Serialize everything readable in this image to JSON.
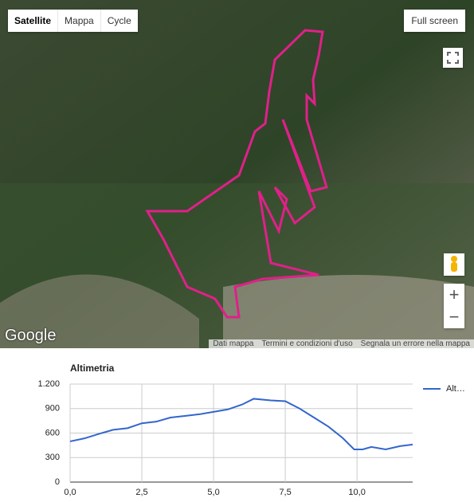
{
  "map": {
    "map_types": [
      "Satellite",
      "Mappa",
      "Cycle"
    ],
    "fullscreen": "Full screen",
    "logo": "Google",
    "zoom_in": "+",
    "zoom_out": "−",
    "footer": [
      "Dati mappa",
      "Termini e condizioni d'uso",
      "Segnala un errore nella mappa"
    ]
  },
  "chart_data": {
    "type": "line",
    "title": "Altimetria",
    "x": [
      0,
      0.5,
      1,
      1.5,
      2,
      2.5,
      3,
      3.5,
      4,
      4.5,
      5,
      5.5,
      6,
      6.4,
      7,
      7.5,
      8,
      8.5,
      9,
      9.5,
      9.9,
      10.2,
      10.5,
      11,
      11.5,
      11.94
    ],
    "series": [
      {
        "name": "Alt…",
        "color": "#3366cc",
        "values": [
          498,
          535,
          590,
          640,
          660,
          720,
          740,
          790,
          810,
          830,
          860,
          890,
          950,
          1020,
          1000,
          990,
          900,
          790,
          680,
          540,
          400,
          400,
          430,
          400,
          440,
          460
        ]
      }
    ],
    "xlim": [
      0,
      11.94
    ],
    "ylim": [
      0,
      1200
    ],
    "xticks": [
      {
        "value": 0,
        "label": "0,0"
      },
      {
        "value": 2.5,
        "label": "2,5"
      },
      {
        "value": 5,
        "label": "5,0"
      },
      {
        "value": 7.5,
        "label": "7,5"
      },
      {
        "value": 10,
        "label": "10,0"
      }
    ],
    "yticks": [
      0,
      300,
      600,
      900,
      {
        "value": 1200,
        "label": "1.200"
      }
    ],
    "grid": true,
    "legend": "right"
  }
}
